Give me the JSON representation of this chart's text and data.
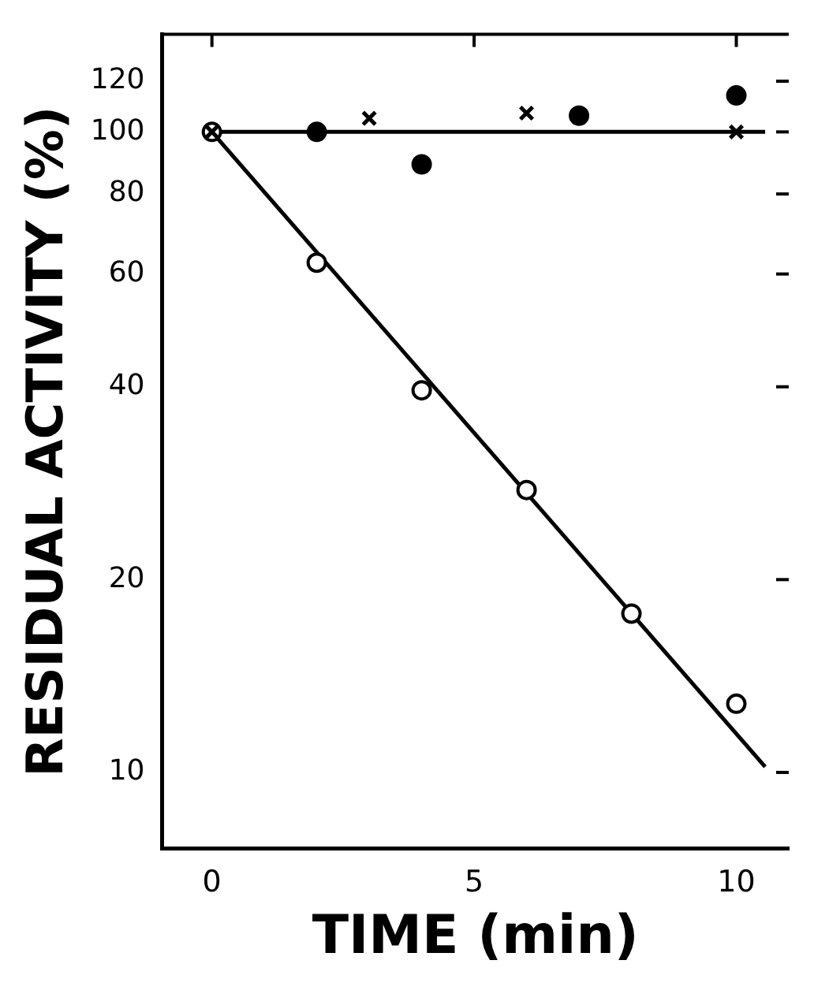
{
  "chart_data": {
    "type": "scatter",
    "xlabel": "TIME (min)",
    "ylabel": "RESIDUAL ACTIVITY (%)",
    "log": "y",
    "grid": false,
    "legend": false,
    "xlim": [
      -0.95,
      11
    ],
    "xticks": [
      0,
      5,
      10
    ],
    "ylim": [
      7.6,
      142
    ],
    "yticks": [
      10,
      20,
      40,
      60,
      80,
      100,
      120
    ],
    "series": [
      {
        "marker": "circle",
        "color": "#ffffff",
        "x": [
          0,
          2,
          4,
          6,
          8,
          10
        ],
        "values": [
          100,
          62.5,
          39.5,
          27.6,
          17.7,
          12.8
        ]
      },
      {
        "marker": "circle",
        "color": "#000000",
        "x": [
          2,
          4,
          7,
          10
        ],
        "values": [
          100,
          89,
          106,
          114
        ]
      },
      {
        "marker": "cross",
        "color": "#000000",
        "x": [
          0,
          3,
          6,
          10
        ],
        "values": [
          100,
          105,
          107,
          100
        ]
      },
      {
        "type": "line",
        "marker": "none",
        "line_style": "solid",
        "color": "#000000",
        "x": [
          0,
          10.55
        ],
        "values": [
          100,
          100
        ]
      },
      {
        "type": "line",
        "marker": "none",
        "line_style": "solid",
        "color": "#000000",
        "x": [
          0,
          10.55
        ],
        "values": [
          100,
          10.2
        ]
      }
    ]
  }
}
